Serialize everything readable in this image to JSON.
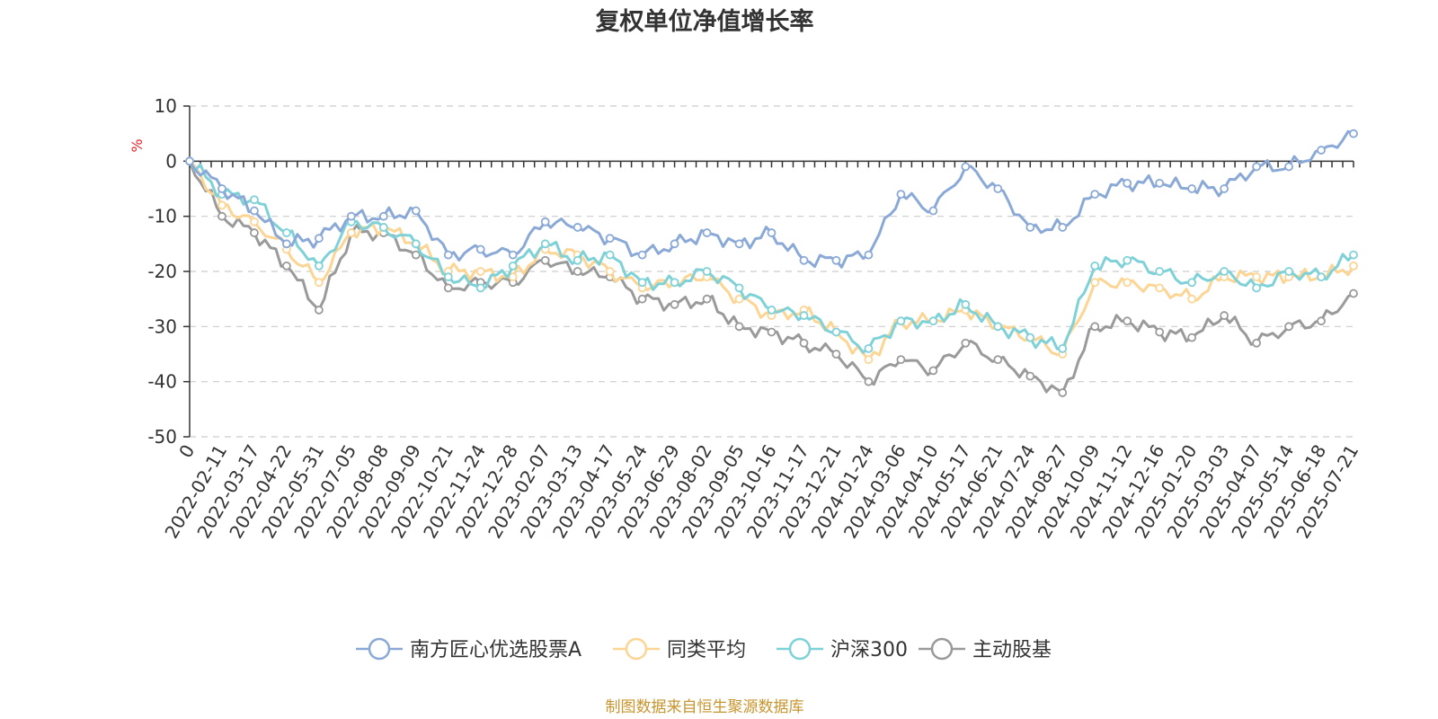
{
  "colors": {
    "series": [
      "#8aa9d6",
      "#fcd594",
      "#7fd1d8",
      "#9a9a9a"
    ],
    "unit": "#e8262b",
    "source": "#c7952e",
    "axis": "#333333",
    "grid": "#cccccc"
  },
  "chart_data": {
    "type": "line",
    "title": "复权单位净值增长率",
    "ylabel": "%",
    "ylim": [
      -50,
      10
    ],
    "yticks": [
      "10",
      "0",
      "-10",
      "-20",
      "-30",
      "-40",
      "-50"
    ],
    "ytick_values": [
      10,
      0,
      -10,
      -20,
      -30,
      -40,
      -50
    ],
    "grid": "horizontal dashed",
    "legend_position": "bottom-center",
    "categories": [
      "0",
      "2022-02-11",
      "2022-03-17",
      "2022-04-22",
      "2022-05-31",
      "2022-07-05",
      "2022-08-08",
      "2022-09-09",
      "2022-10-21",
      "2022-11-24",
      "2022-12-28",
      "2023-02-07",
      "2023-03-13",
      "2023-04-17",
      "2023-05-24",
      "2023-06-29",
      "2023-08-02",
      "2023-09-05",
      "2023-10-16",
      "2023-11-17",
      "2023-12-21",
      "2024-01-24",
      "2024-03-06",
      "2024-04-10",
      "2024-05-17",
      "2024-06-21",
      "2024-07-24",
      "2024-08-27",
      "2024-10-09",
      "2024-11-12",
      "2024-12-16",
      "2025-01-20",
      "2025-03-03",
      "2025-04-07",
      "2025-05-14",
      "2025-06-18",
      "2025-07-21"
    ],
    "series": [
      {
        "name": "南方匠心优选股票A",
        "values": [
          0,
          -5,
          -9,
          -15,
          -14,
          -10,
          -10,
          -9,
          -17,
          -16,
          -17,
          -11,
          -12,
          -14,
          -17,
          -15,
          -13,
          -15,
          -13,
          -18,
          -18,
          -17,
          -6,
          -9,
          -1,
          -5,
          -12,
          -12,
          -6,
          -4,
          -4,
          -5,
          -5,
          -1,
          -1,
          2,
          5
        ]
      },
      {
        "name": "同类平均",
        "values": [
          0,
          -8,
          -11,
          -16,
          -22,
          -13,
          -12,
          -15,
          -20,
          -20,
          -21,
          -16,
          -17,
          -20,
          -23,
          -22,
          -21,
          -25,
          -28,
          -27,
          -31,
          -36,
          -29,
          -29,
          -27,
          -30,
          -32,
          -35,
          -22,
          -22,
          -23,
          -25,
          -21,
          -21,
          -21,
          -21,
          -19
        ]
      },
      {
        "name": "沪深300",
        "values": [
          0,
          -6,
          -7,
          -13,
          -19,
          -11,
          -12,
          -15,
          -21,
          -23,
          -19,
          -15,
          -18,
          -17,
          -22,
          -22,
          -20,
          -23,
          -27,
          -28,
          -31,
          -34,
          -29,
          -29,
          -26,
          -30,
          -32,
          -34,
          -19,
          -18,
          -20,
          -22,
          -20,
          -23,
          -20,
          -21,
          -17
        ]
      },
      {
        "name": "主动股基",
        "values": [
          0,
          -10,
          -13,
          -19,
          -27,
          -13,
          -13,
          -17,
          -23,
          -22,
          -22,
          -18,
          -20,
          -21,
          -25,
          -26,
          -25,
          -30,
          -31,
          -33,
          -35,
          -40,
          -36,
          -38,
          -33,
          -36,
          -39,
          -42,
          -30,
          -29,
          -31,
          -32,
          -28,
          -33,
          -30,
          -29,
          -24
        ]
      }
    ]
  },
  "source_note": "制图数据来自恒生聚源数据库"
}
